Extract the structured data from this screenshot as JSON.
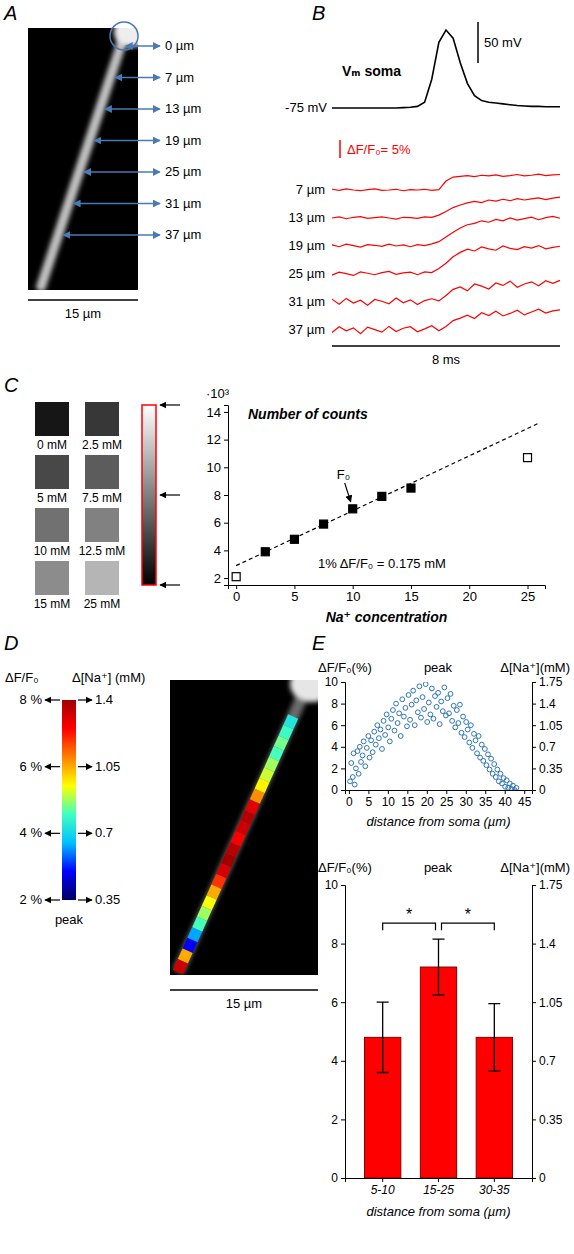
{
  "chart_data": [
    {
      "panel_label": "A",
      "type": "image",
      "annotations": [
        "0 µm",
        "7 µm",
        "13 µm",
        "19 µm",
        "25 µm",
        "31 µm",
        "37 µm"
      ],
      "scale_bar": "15 µm"
    },
    {
      "panel_label": "B",
      "type": "line",
      "x": [
        0,
        0.25,
        0.5,
        0.75,
        1,
        1.25,
        1.5,
        1.75,
        2,
        2.25,
        2.5,
        2.75,
        3,
        3.25,
        3.5,
        3.75,
        4,
        4.25,
        4.5,
        4.75,
        5,
        5.25,
        5.5,
        5.75,
        6,
        6.25,
        6.5,
        6.75,
        7,
        7.25,
        7.5,
        7.75,
        8
      ],
      "series": [
        {
          "name": "Vₘ soma",
          "color": "#000000",
          "values": [
            -75,
            -75,
            -75,
            -75,
            -75,
            -75,
            -75,
            -75,
            -75,
            -75,
            -74.5,
            -74,
            -73,
            -68,
            -40,
            5,
            20,
            10,
            -20,
            -45,
            -60,
            -66,
            -68,
            -69,
            -70,
            -71,
            -72,
            -72.5,
            -73,
            -73,
            -73.5,
            -73.5,
            -73.5
          ]
        },
        {
          "name": "7 µm",
          "color": "#ff0000",
          "axis": "y2",
          "values": [
            0.2,
            -0.1,
            0.3,
            0,
            -0.2,
            0.1,
            0.3,
            -0.1,
            0,
            0.2,
            -0.2,
            0.1,
            0,
            0.2,
            -0.1,
            0.1,
            2.5,
            3.6,
            3.8,
            4.0,
            3.7,
            4.1,
            3.9,
            4.2,
            3.8,
            4.0,
            4.3,
            3.9,
            4.1,
            4.4,
            4.0,
            4.2,
            4.3
          ]
        },
        {
          "name": "13 µm",
          "color": "#ff0000",
          "axis": "y2",
          "values": [
            0,
            0.3,
            -0.2,
            0.2,
            0.4,
            -0.1,
            0.1,
            0.3,
            0,
            -0.3,
            0.2,
            0.1,
            -0.1,
            0.3,
            0.2,
            0.8,
            1.8,
            2.9,
            3.6,
            4.2,
            4.6,
            4.3,
            5.0,
            4.7,
            5.2,
            4.8,
            5.4,
            5.0,
            5.3,
            5.6,
            5.1,
            5.5,
            5.8
          ]
        },
        {
          "name": "19 µm",
          "color": "#ff0000",
          "axis": "y2",
          "values": [
            0.3,
            -0.2,
            0.5,
            0.1,
            -0.3,
            0.4,
            0.2,
            -0.1,
            0.5,
            0,
            0.3,
            -0.2,
            0.4,
            0.1,
            0.6,
            1.2,
            2.5,
            3.8,
            5.0,
            5.9,
            6.3,
            7.0,
            6.6,
            7.4,
            7.0,
            7.8,
            7.2,
            7.6,
            8.0,
            7.3,
            7.9,
            8.2,
            7.7
          ]
        },
        {
          "name": "25 µm",
          "color": "#ff0000",
          "axis": "y2",
          "values": [
            -0.3,
            0.5,
            0.1,
            -0.4,
            0.6,
            0.2,
            -0.2,
            0.4,
            0.7,
            -0.1,
            0.3,
            0.5,
            -0.2,
            0.6,
            0.4,
            1.5,
            3.0,
            4.8,
            6.0,
            6.9,
            6.4,
            7.5,
            7.0,
            6.6,
            7.8,
            7.1,
            6.8,
            7.6,
            7.2,
            7.9,
            7.0,
            7.4,
            7.7
          ]
        },
        {
          "name": "31 µm",
          "color": "#ff0000",
          "axis": "y2",
          "values": [
            0.8,
            -0.6,
            1.0,
            -0.3,
            0.5,
            -0.9,
            0.7,
            0.2,
            -0.5,
            1.1,
            -0.2,
            0.6,
            -0.7,
            0.4,
            0.9,
            0.3,
            1.8,
            3.5,
            4.2,
            3.1,
            5.0,
            4.4,
            3.6,
            5.3,
            4.6,
            5.8,
            4.1,
            5.0,
            5.6,
            4.5,
            5.9,
            5.2,
            6.0
          ]
        },
        {
          "name": "37 µm",
          "color": "#ff0000",
          "axis": "y2",
          "values": [
            -0.7,
            0.9,
            -0.2,
            0.6,
            -1.0,
            0.8,
            0.1,
            -0.6,
            1.0,
            -0.4,
            0.5,
            0.9,
            -0.5,
            0.3,
            1.2,
            -0.2,
            1.0,
            2.6,
            3.3,
            4.1,
            3.2,
            4.8,
            4.0,
            5.2,
            3.9,
            4.6,
            5.5,
            4.2,
            5.0,
            5.8,
            4.7,
            5.3,
            5.6
          ]
        }
      ],
      "scale_bars": [
        {
          "value": 50,
          "label": "50 mV"
        },
        {
          "value": 5,
          "label": "ΔF/F₀= 5%"
        },
        {
          "value": 8,
          "label": "8 ms"
        }
      ],
      "baseline": {
        "value": -75,
        "label": "-75 mV"
      }
    },
    {
      "panel_label": "C",
      "type": "scatter",
      "title": "Number of counts",
      "x_label": "Na⁺ concentration",
      "annotations": [
        "·10³",
        "1% ΔF/F₀ = 0.175 mM"
      ],
      "xlim": [
        -0.7,
        26.5
      ],
      "xticks": [
        0,
        5,
        10,
        15,
        20,
        25
      ],
      "ylim": [
        1.5,
        14.5
      ],
      "yticks": [
        2,
        4,
        6,
        8,
        10,
        12,
        14
      ],
      "series": [
        {
          "marker": "square",
          "color": "#000000",
          "x": [
            2.5,
            5,
            7.5,
            10,
            12.5,
            15
          ],
          "values": [
            3.9,
            4.8,
            5.9,
            7.0,
            7.9,
            8.5
          ]
        },
        {
          "marker": "open-square",
          "color": "#000000",
          "x": [
            0,
            25
          ],
          "values": [
            2.1,
            10.7
          ]
        },
        {
          "type": "line",
          "line_style": "dashed",
          "color": "#000000",
          "x": [
            0,
            26
          ],
          "values": [
            2.9,
            13.2
          ]
        }
      ],
      "arrow_label": {
        "text": "F₀",
        "x": 10,
        "value": 7.0
      },
      "squares": {
        "labels": [
          "0 mM",
          "2.5 mM",
          "5 mM",
          "7.5 mM",
          "10 mM",
          "12.5 mM",
          "15 mM",
          "25 mM"
        ],
        "counts": [
          2.1,
          3.9,
          4.8,
          5.9,
          7.0,
          7.9,
          8.5,
          10.7
        ]
      },
      "colorbar": {
        "range": [
          2,
          14
        ],
        "arrows": [
          14,
          8,
          2
        ]
      }
    },
    {
      "panel_label": "D",
      "type": "heatmap",
      "values": [
        4.2,
        4.5,
        4.8,
        4.6,
        5.0,
        5.2,
        5.5,
        6.2,
        7.4,
        7.8,
        7.6,
        7.2,
        7.8,
        8.0,
        7.5,
        6.8,
        6.0,
        5.4,
        5.0,
        4.6,
        3.6,
        2.8,
        6.0,
        7.6
      ],
      "colorbar": {
        "title": "ΔF/F₀",
        "range": [
          2,
          8
        ],
        "ticks": [
          {
            "value": 2,
            "label": "2 %"
          },
          {
            "value": 4,
            "label": "4 %"
          },
          {
            "value": 6,
            "label": "6 %"
          },
          {
            "value": 8,
            "label": "8 %"
          }
        ],
        "label": "peak"
      },
      "colorbar2": {
        "title": "Δ[Na⁺] (mM)",
        "range": [
          0.35,
          1.4
        ],
        "ticks": [
          0.35,
          0.7,
          1.05,
          1.4
        ]
      },
      "scale_bar": "15 µm"
    },
    {
      "panel_label": "E",
      "type": "scatter",
      "subtitle": "peak",
      "y_label": "ΔF/F₀(%)",
      "y2_label": "Δ[Na⁺](mM)",
      "x_label": "distance from soma (µm)",
      "xlim": [
        -1,
        47
      ],
      "xticks": [
        0,
        5,
        10,
        15,
        20,
        25,
        30,
        35,
        40,
        45
      ],
      "ylim": [
        0,
        10
      ],
      "yticks": [
        0,
        2,
        4,
        6,
        8,
        10
      ],
      "y2lim": [
        0,
        1.75
      ],
      "y2ticks": [
        0,
        0.35,
        0.7,
        1.05,
        1.4,
        1.75
      ],
      "marker": "open-circle",
      "color": "#2e75b6",
      "x": [
        0.3,
        0.6,
        1.0,
        1.2,
        1.5,
        1.8,
        2.2,
        2.5,
        2.8,
        3.1,
        3.5,
        3.8,
        4.2,
        4.6,
        5.0,
        5.3,
        5.7,
        6.1,
        6.5,
        6.9,
        7.3,
        7.7,
        8.1,
        8.5,
        8.9,
        9.3,
        9.7,
        10.1,
        10.5,
        10.9,
        11.3,
        11.7,
        12.1,
        12.5,
        12.9,
        13.3,
        13.7,
        14.1,
        14.5,
        14.9,
        15.3,
        15.7,
        16.1,
        16.5,
        16.9,
        17.3,
        17.7,
        18.1,
        18.5,
        18.9,
        19.3,
        19.7,
        20.1,
        20.5,
        20.9,
        21.3,
        21.7,
        22.1,
        22.5,
        22.9,
        23.3,
        23.7,
        24.1,
        24.5,
        24.9,
        25.3,
        25.7,
        26.1,
        26.5,
        26.9,
        27.3,
        27.7,
        28.1,
        28.5,
        28.9,
        29.3,
        29.7,
        30.1,
        30.5,
        30.9,
        31.3,
        31.7,
        32.1,
        32.5,
        32.9,
        33.3,
        33.7,
        34.1,
        34.5,
        34.9,
        35.3,
        35.7,
        36.1,
        36.5,
        36.9,
        37.3,
        37.7,
        38.1,
        38.5,
        38.9,
        39.3,
        39.7,
        40.1,
        40.5,
        40.9,
        41.3,
        41.7,
        42.1,
        42.5,
        43.0
      ],
      "values": [
        0.8,
        2.5,
        1.2,
        3.4,
        0.5,
        2.0,
        3.6,
        1.5,
        4.0,
        2.6,
        3.2,
        4.5,
        2.2,
        3.9,
        5.0,
        3.0,
        4.6,
        3.5,
        5.4,
        4.2,
        6.0,
        4.8,
        5.6,
        3.8,
        6.4,
        5.1,
        7.0,
        5.8,
        4.5,
        6.6,
        7.4,
        5.5,
        8.0,
        6.2,
        7.1,
        5.0,
        8.4,
        6.8,
        7.6,
        5.9,
        8.8,
        6.5,
        7.9,
        9.2,
        6.0,
        8.3,
        7.2,
        9.6,
        6.7,
        8.6,
        7.5,
        9.8,
        6.3,
        8.1,
        7.0,
        9.4,
        6.6,
        8.7,
        7.7,
        9.0,
        6.1,
        8.2,
        7.3,
        9.5,
        6.9,
        8.5,
        7.1,
        8.9,
        6.4,
        7.8,
        5.8,
        7.4,
        6.2,
        7.9,
        5.3,
        6.8,
        4.9,
        6.3,
        5.6,
        4.4,
        6.0,
        3.9,
        5.2,
        4.6,
        3.4,
        5.0,
        3.0,
        4.2,
        2.7,
        3.8,
        2.3,
        3.3,
        1.9,
        2.9,
        1.5,
        2.4,
        1.2,
        1.9,
        0.8,
        1.5,
        0.6,
        1.1,
        0.3,
        0.9,
        0.2,
        0.6,
        0.1,
        0.4,
        0.0,
        0.2
      ]
    },
    {
      "type": "bar",
      "subtitle": "peak",
      "y_label": "ΔF/F₀(%)",
      "y2_label": "Δ[Na⁺](mM)",
      "x_label": "distance from soma (µm)",
      "categories": [
        "5-10",
        "15-25",
        "30-35"
      ],
      "values": [
        4.8,
        7.2,
        4.8
      ],
      "errors": [
        1.2,
        0.95,
        1.15
      ],
      "color": "#ff0000",
      "ylim": [
        0,
        10
      ],
      "yticks": [
        0,
        2,
        4,
        6,
        8,
        10
      ],
      "y2lim": [
        0,
        1.75
      ],
      "y2ticks": [
        0,
        0.35,
        0.7,
        1.05,
        1.4,
        1.75
      ],
      "significance": [
        {
          "between": [
            0,
            1
          ],
          "label": "*"
        },
        {
          "between": [
            1,
            2
          ],
          "label": "*"
        }
      ]
    }
  ]
}
